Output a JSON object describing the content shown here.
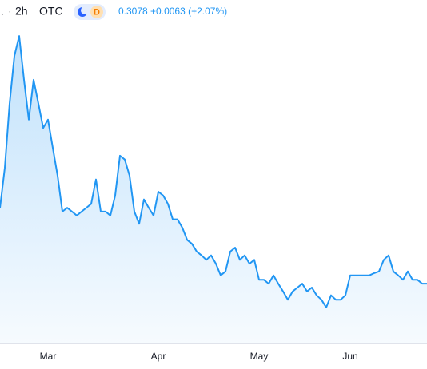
{
  "chart_data": {
    "type": "line",
    "symbol": ".",
    "interval": "2h",
    "exchange": "OTC",
    "badge": "D",
    "price": "0.3078",
    "change": "+0.0063",
    "change_percent": "(+2.07%)",
    "color": "#2196f3",
    "ylim": [
      0.2,
      0.82
    ],
    "categories": [
      null,
      null,
      null,
      null,
      null,
      null,
      null,
      null,
      null,
      null,
      "Mar",
      null,
      null,
      null,
      null,
      null,
      null,
      null,
      null,
      null,
      null,
      null,
      null,
      null,
      null,
      null,
      null,
      null,
      null,
      null,
      null,
      null,
      null,
      "Apr",
      null,
      null,
      null,
      null,
      null,
      null,
      null,
      null,
      null,
      null,
      null,
      null,
      null,
      null,
      null,
      null,
      null,
      null,
      null,
      null,
      "May",
      null,
      null,
      null,
      null,
      null,
      null,
      null,
      null,
      null,
      null,
      null,
      null,
      null,
      null,
      null,
      null,
      null,
      null,
      "Jun",
      null,
      null,
      null,
      null,
      null,
      null,
      null,
      null,
      null,
      null,
      null,
      null,
      null,
      null,
      null,
      null
    ],
    "values": [
      0.445,
      0.517,
      0.633,
      0.719,
      0.755,
      0.676,
      0.604,
      0.676,
      0.633,
      0.589,
      0.604,
      0.553,
      0.503,
      0.438,
      0.445,
      0.438,
      0.431,
      0.438,
      0.445,
      0.452,
      0.496,
      0.438,
      0.438,
      0.431,
      0.467,
      0.539,
      0.532,
      0.503,
      0.438,
      0.416,
      0.46,
      0.445,
      0.431,
      0.474,
      0.467,
      0.452,
      0.424,
      0.424,
      0.409,
      0.387,
      0.38,
      0.366,
      0.359,
      0.351,
      0.359,
      0.344,
      0.323,
      0.33,
      0.366,
      0.373,
      0.351,
      0.359,
      0.344,
      0.351,
      0.315,
      0.315,
      0.308,
      0.323,
      0.308,
      0.294,
      0.279,
      0.294,
      0.301,
      0.308,
      0.294,
      0.301,
      0.287,
      0.279,
      0.265,
      0.287,
      0.279,
      0.279,
      0.287,
      0.323,
      0.323,
      0.323,
      0.323,
      0.323,
      0.327,
      0.33,
      0.351,
      0.359,
      0.33,
      0.323,
      0.315,
      0.33,
      0.315,
      0.315,
      0.308,
      0.308
    ]
  }
}
